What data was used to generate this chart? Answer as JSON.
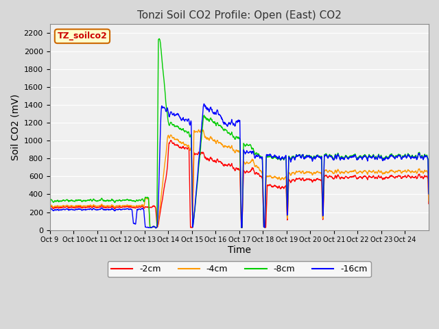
{
  "title": "Tonzi Soil CO2 Profile: Open (East) CO2",
  "ylabel": "Soil CO2 (mV)",
  "xlabel": "Time",
  "ylim": [
    0,
    2300
  ],
  "yticks": [
    0,
    200,
    400,
    600,
    800,
    1000,
    1200,
    1400,
    1600,
    1800,
    2000,
    2200
  ],
  "colors": {
    "2cm": "#ff0000",
    "4cm": "#ff9900",
    "8cm": "#00cc00",
    "16cm": "#0000ff"
  },
  "legend_labels": [
    "-2cm",
    "-4cm",
    "-8cm",
    "-16cm"
  ],
  "xtick_labels": [
    "Oct 9",
    "Oct 10",
    "Oct 11",
    "Oct 12",
    "Oct 13",
    "Oct 14",
    "Oct 15",
    "Oct 16",
    "Oct 17",
    "Oct 18",
    "Oct 19",
    "Oct 20",
    "Oct 21",
    "Oct 22",
    "Oct 23",
    "Oct 24"
  ],
  "annotation_text": "TZ_soilco2",
  "annotation_bg": "#ffffcc",
  "annotation_border": "#cc6600",
  "fig_bg": "#d8d8d8",
  "plot_bg": "#f0f0f0",
  "title_color": "#333333",
  "grid_color": "#ffffff"
}
